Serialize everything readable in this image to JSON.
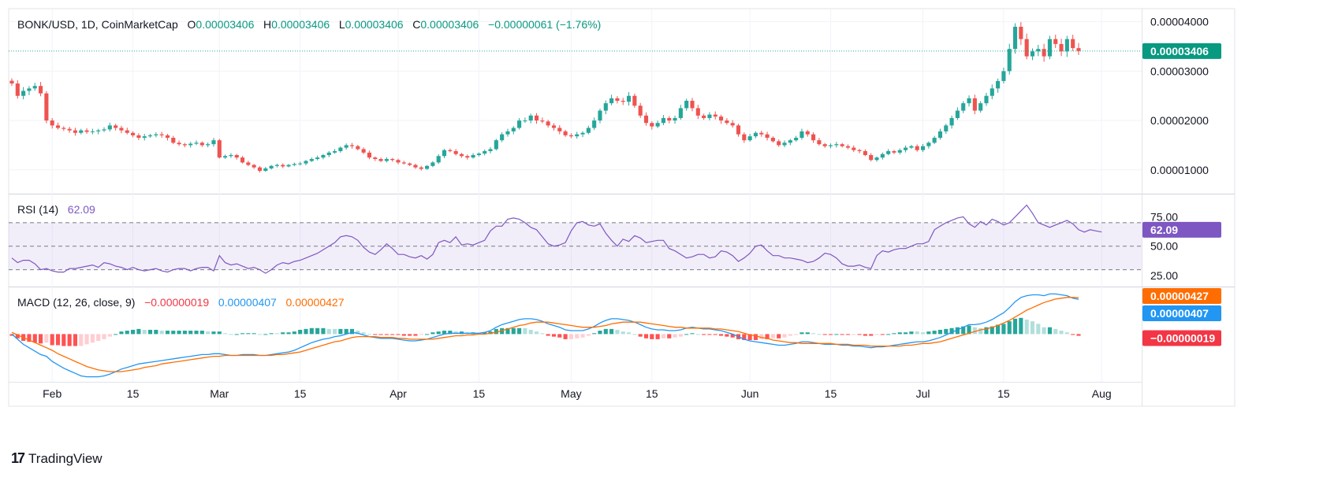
{
  "header": {
    "symbol": "BONK/USD, 1D, CoinMarketCap",
    "o_label": "O",
    "o_value": "0.00003406",
    "h_label": "H",
    "h_value": "0.00003406",
    "l_label": "L",
    "l_value": "0.00003406",
    "c_label": "C",
    "c_value": "0.00003406",
    "change": "−0.00000061 (−1.76%)"
  },
  "price_axis": {
    "ticks": [
      "0.00004000",
      "0.00003000",
      "0.00002000",
      "0.00001000"
    ],
    "last_price_label": "0.00003406"
  },
  "rsi_legend": {
    "name": "RSI (14)",
    "value": "62.09"
  },
  "rsi_axis": {
    "ticks": [
      "75.00",
      "50.00",
      "25.00"
    ],
    "last_label": "62.09"
  },
  "macd_legend": {
    "name": "MACD (12, 26, close, 9)",
    "hist": "−0.00000019",
    "macd": "0.00000407",
    "signal": "0.00000427"
  },
  "macd_axis": {
    "signal_label": "0.00000427",
    "macd_label": "0.00000407",
    "hist_label": "−0.00000019"
  },
  "time_axis": [
    "Feb",
    "15",
    "Mar",
    "15",
    "Apr",
    "15",
    "May",
    "15",
    "Jun",
    "15",
    "Jul",
    "15",
    "Aug"
  ],
  "footer": {
    "brand": "TradingView",
    "logo": "17"
  },
  "colors": {
    "up": "#26a69a",
    "down": "#ef5350",
    "rsi": "#7e57c2",
    "macd": "#2196f3",
    "signal": "#ff6d00",
    "text": "#131722",
    "grid": "#f0f3fa"
  },
  "chart_data": {
    "type": "candlestick",
    "title": "BONK/USD, 1D, CoinMarketCap",
    "date_range": [
      "2024-01-25",
      "2024-07-26"
    ],
    "price_ylim": [
      5.5e-06,
      4.25e-05
    ],
    "price_close": [
      2.75e-05,
      2.5e-05,
      2.6e-05,
      2.65e-05,
      2.7e-05,
      2.55e-05,
      2e-05,
      1.9e-05,
      1.85e-05,
      1.83e-05,
      1.8e-05,
      1.75e-05,
      1.8e-05,
      1.77e-05,
      1.78e-05,
      1.8e-05,
      1.82e-05,
      1.9e-05,
      1.85e-05,
      1.8e-05,
      1.75e-05,
      1.7e-05,
      1.65e-05,
      1.68e-05,
      1.7e-05,
      1.72e-05,
      1.7e-05,
      1.65e-05,
      1.55e-05,
      1.52e-05,
      1.5e-05,
      1.53e-05,
      1.55e-05,
      1.5e-05,
      1.52e-05,
      1.6e-05,
      1.25e-05,
      1.28e-05,
      1.3e-05,
      1.25e-05,
      1.15e-05,
      1.1e-05,
      1.05e-05,
      9.8e-06,
      1.03e-05,
      1.08e-05,
      1.1e-05,
      1.07e-05,
      1.1e-05,
      1.12e-05,
      1.13e-05,
      1.18e-05,
      1.22e-05,
      1.25e-05,
      1.3e-05,
      1.35e-05,
      1.38e-05,
      1.45e-05,
      1.5e-05,
      1.48e-05,
      1.42e-05,
      1.35e-05,
      1.25e-05,
      1.22e-05,
      1.18e-05,
      1.22e-05,
      1.2e-05,
      1.15e-05,
      1.13e-05,
      1.1e-05,
      1.05e-05,
      1.02e-05,
      1.08e-05,
      1.15e-05,
      1.28e-05,
      1.4e-05,
      1.38e-05,
      1.32e-05,
      1.28e-05,
      1.25e-05,
      1.3e-05,
      1.33e-05,
      1.38e-05,
      1.42e-05,
      1.6e-05,
      1.72e-05,
      1.78e-05,
      1.85e-05,
      2e-05,
      2e-05,
      2.1e-05,
      2e-05,
      1.98e-05,
      1.9e-05,
      1.85e-05,
      1.78e-05,
      1.7e-05,
      1.68e-05,
      1.72e-05,
      1.75e-05,
      1.85e-05,
      2e-05,
      2.2e-05,
      2.35e-05,
      2.45e-05,
      2.4e-05,
      2.38e-05,
      2.5e-05,
      2.3e-05,
      2.1e-05,
      1.95e-05,
      1.88e-05,
      1.95e-05,
      2.05e-05,
      2e-05,
      2.05e-05,
      2.25e-05,
      2.4e-05,
      2.25e-05,
      2.1e-05,
      2.05e-05,
      2.12e-05,
      2.08e-05,
      2e-05,
      1.95e-05,
      1.9e-05,
      1.72e-05,
      1.6e-05,
      1.68e-05,
      1.75e-05,
      1.72e-05,
      1.65e-05,
      1.58e-05,
      1.5e-05,
      1.55e-05,
      1.6e-05,
      1.65e-05,
      1.78e-05,
      1.72e-05,
      1.6e-05,
      1.52e-05,
      1.48e-05,
      1.5e-05,
      1.52e-05,
      1.48e-05,
      1.45e-05,
      1.4e-05,
      1.38e-05,
      1.3e-05,
      1.2e-05,
      1.25e-05,
      1.32e-05,
      1.38e-05,
      1.35e-05,
      1.4e-05,
      1.45e-05,
      1.48e-05,
      1.4e-05,
      1.48e-05,
      1.55e-05,
      1.65e-05,
      1.78e-05,
      1.9e-05,
      2.05e-05,
      2.2e-05,
      2.35e-05,
      2.45e-05,
      2.2e-05,
      2.35e-05,
      2.5e-05,
      2.65e-05,
      2.8e-05,
      3e-05,
      3.45e-05,
      3.9e-05,
      3.65e-05,
      3.3e-05,
      3.4e-05,
      3.45e-05,
      3.3e-05,
      3.65e-05,
      3.55e-05,
      3.4e-05,
      3.65e-05,
      3.467e-05,
      3.406e-05
    ],
    "rsi_ylim": [
      17,
      92
    ],
    "rsi": [
      40,
      36,
      38,
      38,
      35,
      30,
      31,
      29,
      28,
      28,
      31,
      31,
      32,
      33,
      34,
      32,
      36,
      35,
      33,
      32,
      30,
      32,
      30,
      29,
      30,
      31,
      29,
      28,
      30,
      31,
      31,
      29,
      31,
      32,
      32,
      29,
      42,
      36,
      34,
      35,
      33,
      31,
      32,
      30,
      27,
      30,
      34,
      36,
      35,
      37,
      38,
      40,
      42,
      44,
      47,
      50,
      53,
      58,
      59,
      58,
      55,
      49,
      45,
      43,
      47,
      52,
      48,
      43,
      43,
      41,
      40,
      42,
      39,
      43,
      53,
      55,
      53,
      58,
      51,
      52,
      51,
      53,
      55,
      63,
      67,
      67,
      73,
      74,
      73,
      70,
      66,
      64,
      58,
      52,
      50,
      51,
      53,
      63,
      70,
      71,
      68,
      67,
      69,
      61,
      55,
      50,
      56,
      54,
      59,
      57,
      53,
      54,
      55,
      55,
      48,
      46,
      43,
      40,
      41,
      43,
      43,
      40,
      41,
      46,
      45,
      42,
      37,
      40,
      44,
      50,
      51,
      46,
      42,
      42,
      40,
      40,
      39,
      38,
      36,
      37,
      40,
      44,
      43,
      40,
      35,
      33,
      33,
      34,
      32,
      31,
      42,
      46,
      45,
      47,
      48,
      48,
      50,
      52,
      52,
      54,
      64,
      67,
      70,
      72,
      74,
      75,
      69,
      66,
      71,
      68,
      73,
      71,
      68,
      70,
      75,
      80,
      85,
      78,
      70,
      68,
      66,
      68,
      70,
      72,
      69,
      64,
      62,
      64,
      63,
      62.09
    ],
    "rsi_levels": [
      70,
      50,
      30
    ],
    "macd_ylim": [
      -5.5e-06,
      5.2e-06
    ],
    "macd": [
      0,
      -6e-07,
      -1.2e-06,
      -1.6e-06,
      -2e-06,
      -2.4e-06,
      -2.6e-06,
      -3.2e-06,
      -3.6e-06,
      -4e-06,
      -4.3e-06,
      -4.6e-06,
      -4.9e-06,
      -5e-06,
      -5e-06,
      -5e-06,
      -4.9e-06,
      -4.7e-06,
      -4.4e-06,
      -4.1e-06,
      -3.9e-06,
      -3.7e-06,
      -3.5e-06,
      -3.4e-06,
      -3.3e-06,
      -3.2e-06,
      -3.1e-06,
      -3e-06,
      -2.9e-06,
      -2.8e-06,
      -2.7e-06,
      -2.6e-06,
      -2.5e-06,
      -2.4e-06,
      -2.4e-06,
      -2.3e-06,
      -2.3e-06,
      -2.4e-06,
      -2.5e-06,
      -2.5e-06,
      -2.4e-06,
      -2.4e-06,
      -2.4e-06,
      -2.5e-06,
      -2.5e-06,
      -2.4e-06,
      -2.3e-06,
      -2.2e-06,
      -2.1e-06,
      -1.9e-06,
      -1.6e-06,
      -1.3e-06,
      -1e-06,
      -8e-07,
      -6e-07,
      -5e-07,
      -3e-07,
      -2e-07,
      0,
      2e-07,
      1e-07,
      -1e-07,
      -3e-07,
      -4e-07,
      -5e-07,
      -5e-07,
      -5e-07,
      -6e-07,
      -7e-07,
      -8e-07,
      -8e-07,
      -7e-07,
      -6e-07,
      -4e-07,
      -2e-07,
      0,
      1e-07,
      1e-07,
      1e-07,
      1e-07,
      1e-07,
      1e-07,
      2e-07,
      4e-07,
      8e-07,
      1.1e-06,
      1.3e-06,
      1.5e-06,
      1.7e-06,
      1.8e-06,
      1.8e-06,
      1.7e-06,
      1.5e-06,
      1.2e-06,
      1e-06,
      8e-07,
      5e-07,
      4e-07,
      4e-07,
      4e-07,
      6e-07,
      9e-07,
      1.3e-06,
      1.6e-06,
      1.8e-06,
      1.8e-06,
      1.7e-06,
      1.6e-06,
      1.4e-06,
      1.1e-06,
      8e-07,
      6e-07,
      5e-07,
      5e-07,
      4e-07,
      4e-07,
      5e-07,
      7e-07,
      8e-07,
      7e-07,
      6e-07,
      6e-07,
      5e-07,
      4e-07,
      2e-07,
      0,
      -3e-07,
      -6e-07,
      -8e-07,
      -9e-07,
      -1e-06,
      -1.1e-06,
      -1.2e-06,
      -1.3e-06,
      -1.3e-06,
      -1.2e-06,
      -1.1e-06,
      -9e-07,
      -9e-07,
      -1e-06,
      -1.1e-06,
      -1.2e-06,
      -1.2e-06,
      -1.2e-06,
      -1.3e-06,
      -1.3e-06,
      -1.4e-06,
      -1.4e-06,
      -1.5e-06,
      -1.6e-06,
      -1.5e-06,
      -1.5e-06,
      -1.4e-06,
      -1.3e-06,
      -1.2e-06,
      -1.1e-06,
      -1e-06,
      -9e-07,
      -9e-07,
      -8e-07,
      -6e-07,
      -4e-07,
      -1e-07,
      2e-07,
      5e-07,
      8e-07,
      1.1e-06,
      1.1e-06,
      1.2e-06,
      1.4e-06,
      1.7e-06,
      2.1e-06,
      2.5e-06,
      3.1e-06,
      3.8e-06,
      4.3e-06,
      4.5e-06,
      4.6e-06,
      4.6e-06,
      4.5e-06,
      4.7e-06,
      4.7e-06,
      4.6e-06,
      4.5e-06,
      4.2e-06,
      4.07e-06
    ],
    "signal": [
      2e-07,
      -1e-07,
      -4e-07,
      -7e-07,
      -1e-06,
      -1.3e-06,
      -1.6e-06,
      -1.9e-06,
      -2.3e-06,
      -2.6e-06,
      -2.9e-06,
      -3.2e-06,
      -3.5e-06,
      -3.8e-06,
      -4e-06,
      -4.2e-06,
      -4.3e-06,
      -4.4e-06,
      -4.4e-06,
      -4.4e-06,
      -4.3e-06,
      -4.2e-06,
      -4.1e-06,
      -3.9e-06,
      -3.8e-06,
      -3.7e-06,
      -3.5e-06,
      -3.4e-06,
      -3.3e-06,
      -3.2e-06,
      -3.1e-06,
      -3e-06,
      -2.9e-06,
      -2.8e-06,
      -2.7e-06,
      -2.6e-06,
      -2.6e-06,
      -2.5e-06,
      -2.5e-06,
      -2.5e-06,
      -2.5e-06,
      -2.5e-06,
      -2.5e-06,
      -2.5e-06,
      -2.5e-06,
      -2.5e-06,
      -2.4e-06,
      -2.4e-06,
      -2.3e-06,
      -2.2e-06,
      -2.1e-06,
      -1.9e-06,
      -1.7e-06,
      -1.5e-06,
      -1.3e-06,
      -1.1e-06,
      -9e-07,
      -8e-07,
      -6e-07,
      -4e-07,
      -3e-07,
      -3e-07,
      -3e-07,
      -3e-07,
      -4e-07,
      -4e-07,
      -4e-07,
      -5e-07,
      -5e-07,
      -6e-07,
      -6e-07,
      -6e-07,
      -6e-07,
      -6e-07,
      -5e-07,
      -4e-07,
      -3e-07,
      -2e-07,
      -2e-07,
      -1e-07,
      -1e-07,
      0,
      0,
      1e-07,
      2e-07,
      4e-07,
      6e-07,
      8e-07,
      1e-06,
      1.1e-06,
      1.3e-06,
      1.4e-06,
      1.4e-06,
      1.4e-06,
      1.3e-06,
      1.2e-06,
      1.1e-06,
      1e-06,
      9e-07,
      8e-07,
      8e-07,
      8e-07,
      9e-07,
      1e-06,
      1.2e-06,
      1.3e-06,
      1.4e-06,
      1.4e-06,
      1.4e-06,
      1.4e-06,
      1.3e-06,
      1.2e-06,
      1.1e-06,
      1e-06,
      9e-07,
      8e-07,
      8e-07,
      7e-07,
      7e-07,
      7e-07,
      7e-07,
      7e-07,
      6e-07,
      6e-07,
      5e-07,
      4e-07,
      3e-07,
      1e-07,
      -1e-07,
      -2e-07,
      -4e-07,
      -5e-07,
      -7e-07,
      -8e-07,
      -9e-07,
      -1e-06,
      -1e-06,
      -1.1e-06,
      -1.1e-06,
      -1.1e-06,
      -1.1e-06,
      -1.1e-06,
      -1.1e-06,
      -1.2e-06,
      -1.2e-06,
      -1.2e-06,
      -1.3e-06,
      -1.3e-06,
      -1.3e-06,
      -1.4e-06,
      -1.4e-06,
      -1.4e-06,
      -1.4e-06,
      -1.4e-06,
      -1.4e-06,
      -1.3e-06,
      -1.3e-06,
      -1.2e-06,
      -1.1e-06,
      -1.1e-06,
      -1e-06,
      -9e-07,
      -7e-07,
      -5e-07,
      -3e-07,
      -1e-07,
      1e-07,
      3e-07,
      5e-07,
      6e-07,
      8e-07,
      1e-06,
      1.3e-06,
      1.6e-06,
      2e-06,
      2.4e-06,
      2.8e-06,
      3.1e-06,
      3.4e-06,
      3.7e-06,
      3.9e-06,
      4.1e-06,
      4.2e-06,
      4.3e-06,
      4.3e-06,
      4.27e-06
    ],
    "histogram_note": "histogram = macd - signal"
  }
}
